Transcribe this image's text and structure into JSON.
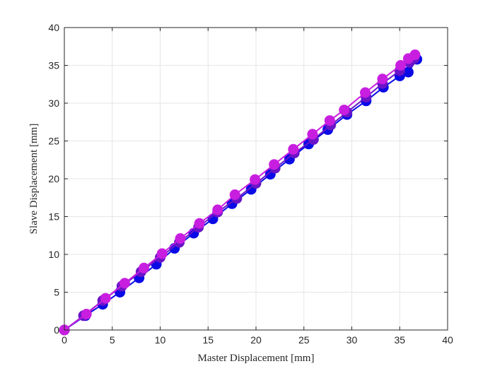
{
  "chart_data": {
    "type": "line",
    "title": "",
    "xlabel": "Master Displacement [mm]",
    "ylabel": "Slave Displacement [mm]",
    "xlim": [
      0,
      40
    ],
    "ylim": [
      0,
      40
    ],
    "xticks": [
      0,
      5,
      10,
      15,
      20,
      25,
      30,
      35,
      40
    ],
    "yticks": [
      0,
      5,
      10,
      15,
      20,
      25,
      30,
      35,
      40
    ],
    "grid": true,
    "legend": "none",
    "colors": {
      "series_a": "#0a0ae6",
      "series_b": "#6a14c8",
      "series_c": "#c81ee0",
      "axis": "#262626",
      "grid": "#e6e6e6"
    },
    "series": [
      {
        "color": "#0a0ae6",
        "x": [
          0,
          2.2,
          4.0,
          5.8,
          7.8,
          9.6,
          11.5,
          13.5,
          15.5,
          17.5,
          19.5,
          21.5,
          23.5,
          25.5,
          27.5,
          29.5,
          31.5,
          33.3,
          35.0,
          35.9,
          36.8
        ],
        "y": [
          0,
          1.9,
          3.4,
          5.0,
          6.9,
          8.7,
          10.8,
          12.8,
          14.7,
          16.7,
          18.6,
          20.6,
          22.6,
          24.6,
          26.5,
          28.5,
          30.3,
          32.1,
          33.6,
          34.1,
          35.8
        ]
      },
      {
        "color": "#6a14c8",
        "x": [
          0,
          2.0,
          4.0,
          6.0,
          8.0,
          10.0,
          12.0,
          14.0,
          16.0,
          18.0,
          20.0,
          22.0,
          24.0,
          26.0,
          27.8,
          29.5,
          31.5,
          33.2,
          35.0,
          36.0,
          36.5
        ],
        "y": [
          0,
          1.9,
          3.9,
          5.8,
          7.7,
          9.6,
          11.6,
          13.6,
          15.6,
          17.4,
          19.4,
          21.4,
          23.4,
          25.2,
          27.1,
          28.8,
          30.8,
          32.6,
          34.3,
          35.4,
          35.9
        ]
      },
      {
        "color": "#c81ee0",
        "x": [
          0,
          2.3,
          4.3,
          6.3,
          8.3,
          10.2,
          12.1,
          14.1,
          16.0,
          17.8,
          19.9,
          21.9,
          23.9,
          25.9,
          27.7,
          29.2,
          31.4,
          33.2,
          35.1,
          35.9,
          36.6
        ],
        "y": [
          0,
          2.1,
          4.2,
          6.2,
          8.2,
          10.1,
          12.1,
          14.1,
          15.9,
          17.9,
          19.9,
          21.9,
          23.9,
          25.9,
          27.7,
          29.1,
          31.4,
          33.2,
          35.0,
          35.9,
          36.4
        ]
      }
    ]
  }
}
